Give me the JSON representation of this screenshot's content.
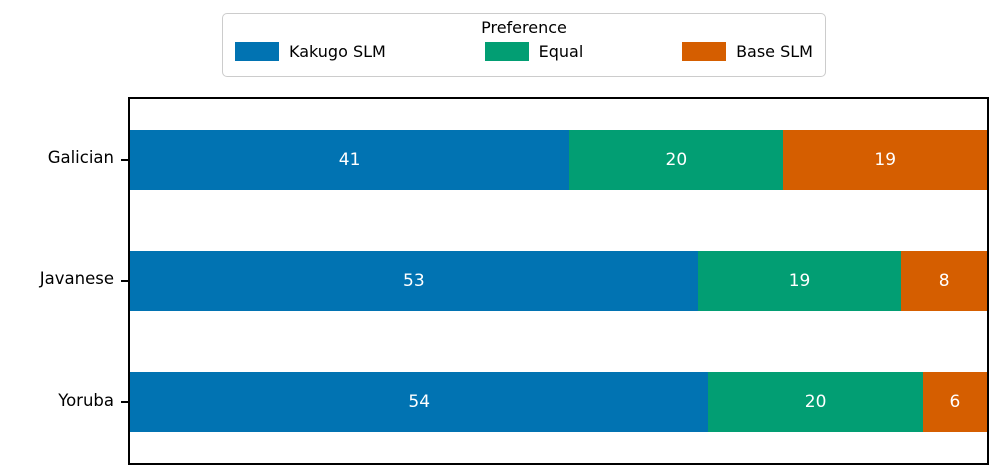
{
  "chart_data": {
    "type": "bar",
    "orientation": "horizontal",
    "stacked": true,
    "title": "",
    "xlabel": "",
    "ylabel": "",
    "xlim": [
      0,
      80
    ],
    "grid": false,
    "categories": [
      "Galician",
      "Javanese",
      "Yoruba"
    ],
    "series": [
      {
        "name": "Kakugo SLM",
        "color": "#0173b2",
        "values": [
          41,
          53,
          54
        ]
      },
      {
        "name": "Equal",
        "color": "#029e73",
        "values": [
          20,
          19,
          20
        ]
      },
      {
        "name": "Base SLM",
        "color": "#d55e00",
        "values": [
          19,
          8,
          6
        ]
      }
    ],
    "bar_labels_shown": true,
    "bar_label_color": "#ffffff",
    "legend": {
      "title": "Preference",
      "position": "top-center-outside",
      "entries": [
        "Kakugo SLM",
        "Equal",
        "Base SLM"
      ]
    },
    "axis_color": "#000000",
    "background_color": "#ffffff"
  }
}
